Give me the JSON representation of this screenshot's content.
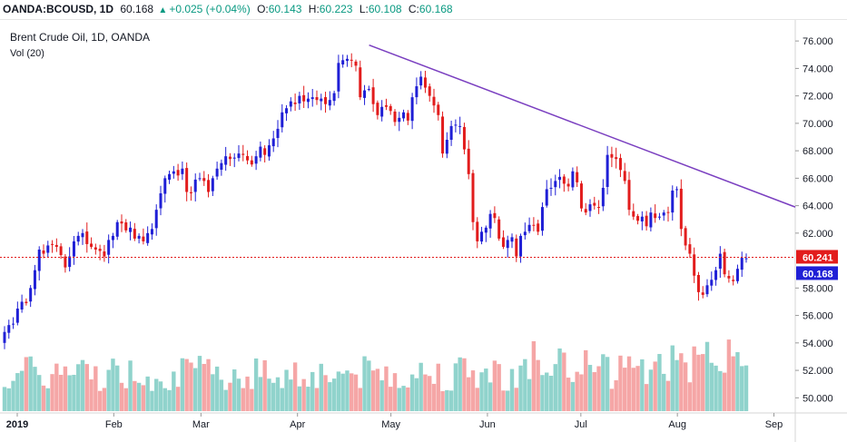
{
  "header": {
    "symbol": "OANDA:BCOUSD, 1D",
    "last": "60.168",
    "change": "+0.025 (+0.04%)",
    "o_label": "O:",
    "o": "60.143",
    "h_label": "H:",
    "h": "60.223",
    "l_label": "L:",
    "l": "60.108",
    "c_label": "C:",
    "c": "60.168"
  },
  "chart_title": "Brent Crude Oil, 1D, OANDA",
  "vol_label": "Vol (20)",
  "colors": {
    "up": "#1f1fd6",
    "down": "#e21c1c",
    "vol_up": "#90d3cc",
    "vol_down": "#f5a6a6",
    "trend": "#7a3fc0",
    "price_line": "#e21c1c"
  },
  "chart_data": {
    "type": "candlestick",
    "title": "Brent Crude Oil, 1D, OANDA",
    "x_ticks": [
      "2019",
      "Feb",
      "Mar",
      "Apr",
      "May",
      "Jun",
      "Jul",
      "Aug",
      "Sep"
    ],
    "y_ticks": [
      "76.000",
      "74.000",
      "72.000",
      "70.000",
      "68.000",
      "66.000",
      "64.000",
      "62.000",
      "58.000",
      "56.000",
      "54.000",
      "52.000",
      "50.000"
    ],
    "ylim": [
      48.5,
      77.2
    ],
    "y_labels": [
      "76.000",
      "74.000",
      "72.000",
      "70.000",
      "68.000",
      "66.000",
      "64.000",
      "62.000",
      "58.000",
      "56.000",
      "54.000",
      "52.000",
      "50.000"
    ],
    "price_line": {
      "label": "60.241",
      "value": 60.241
    },
    "last_price": {
      "label": "60.168",
      "value": 60.168
    },
    "trendline": {
      "from": [
        "2019-04-24",
        75.7
      ],
      "to": [
        "2019-09-02",
        63.9
      ]
    },
    "closes": [
      54.8,
      55.3,
      55.4,
      56.5,
      57.0,
      56.9,
      58.0,
      59.3,
      60.8,
      60.5,
      61.1,
      61.2,
      61.0,
      60.4,
      59.5,
      60.3,
      61.4,
      61.8,
      62.0,
      61.2,
      61.0,
      60.8,
      60.7,
      60.3,
      61.5,
      61.8,
      62.8,
      62.7,
      62.2,
      62.4,
      61.6,
      61.8,
      61.4,
      62.0,
      62.3,
      63.7,
      64.9,
      66.0,
      66.3,
      66.5,
      66.2,
      66.7,
      65.0,
      64.9,
      65.9,
      66.0,
      65.8,
      65.0,
      66.0,
      66.7,
      67.1,
      67.6,
      67.4,
      67.5,
      67.8,
      67.7,
      67.3,
      67.0,
      67.6,
      68.3,
      67.7,
      68.4,
      68.9,
      69.6,
      70.8,
      71.1,
      71.6,
      71.4,
      72.0,
      71.6,
      71.8,
      71.9,
      71.7,
      71.8,
      71.4,
      71.7,
      72.2,
      74.4,
      74.6,
      74.7,
      74.6,
      74.2,
      71.9,
      72.4,
      72.5,
      71.4,
      70.6,
      71.2,
      71.2,
      70.9,
      70.1,
      70.4,
      70.8,
      70.2,
      71.9,
      72.7,
      73.4,
      72.6,
      72.0,
      71.3,
      70.6,
      67.8,
      68.8,
      69.8,
      69.9,
      69.8,
      68.1,
      66.3,
      62.8,
      61.4,
      62.1,
      62.4,
      63.4,
      63.1,
      61.6,
      61.0,
      61.5,
      61.7,
      60.3,
      61.8,
      62.1,
      62.6,
      62.6,
      62.1,
      63.9,
      65.2,
      65.3,
      65.8,
      66.1,
      65.6,
      65.4,
      66.5,
      65.7,
      63.8,
      63.5,
      64.1,
      64.0,
      63.9,
      65.3,
      67.7,
      67.5,
      67.4,
      66.6,
      65.8,
      63.7,
      63.2,
      62.9,
      63.2,
      62.5,
      63.5,
      63.1,
      63.2,
      63.5,
      63.5,
      65.1,
      65.2,
      62.3,
      61.1,
      60.5,
      58.9,
      57.7,
      57.5,
      58.2,
      58.6,
      59.3,
      60.5,
      59.0,
      58.7,
      58.5,
      59.4,
      60.2,
      60.168
    ]
  }
}
